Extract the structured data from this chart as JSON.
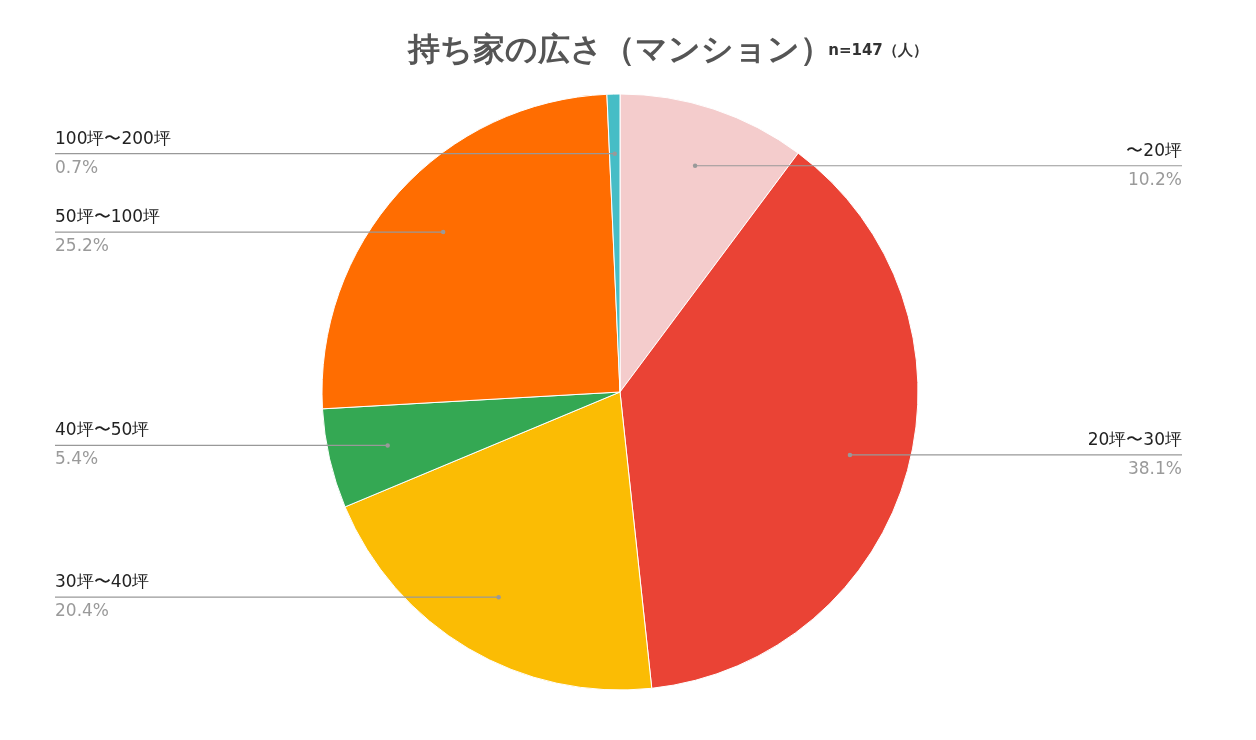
{
  "chart_data": {
    "type": "pie",
    "title": "持ち家の広さ（マンション）",
    "subtitle": "n=147（人）",
    "categories": [
      "〜20坪",
      "20坪〜30坪",
      "30坪〜40坪",
      "40坪〜50坪",
      "50坪〜100坪",
      "100坪〜200坪"
    ],
    "values": [
      10.2,
      38.1,
      20.4,
      5.4,
      25.2,
      0.7
    ],
    "value_labels": [
      "10.2%",
      "38.1%",
      "20.4%",
      "5.4%",
      "25.2%",
      "0.7%"
    ],
    "colors": [
      "#f4cccc",
      "#ea4335",
      "#fbbc04",
      "#34a853",
      "#ff6d01",
      "#46bdc6"
    ]
  }
}
